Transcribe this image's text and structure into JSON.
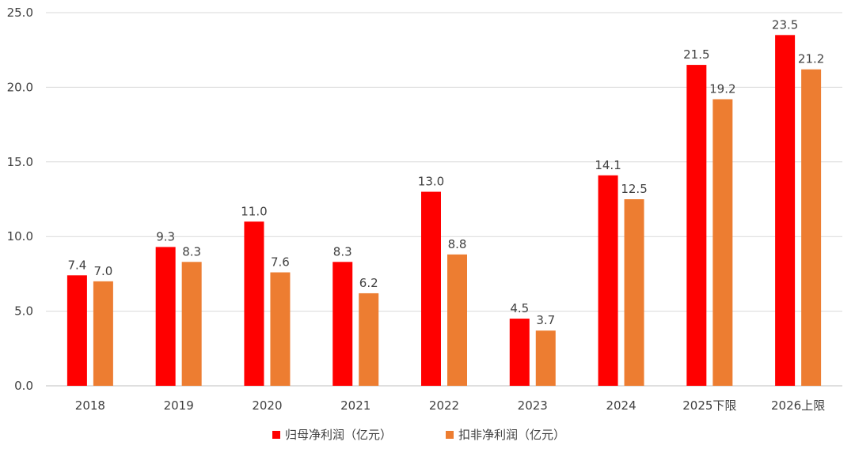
{
  "chart_data": {
    "type": "bar",
    "categories": [
      "2018",
      "2019",
      "2020",
      "2021",
      "2022",
      "2023",
      "2024",
      "2025下限",
      "2026上限"
    ],
    "series": [
      {
        "name": "归母净利润（亿元）",
        "color": "#ff0000",
        "values": [
          7.4,
          9.3,
          11.0,
          8.3,
          13.0,
          4.5,
          14.1,
          21.5,
          23.5
        ],
        "labels": [
          "7.4",
          "9.3",
          "11.0",
          "8.3",
          "13.0",
          "4.5",
          "14.1",
          "21.5",
          "23.5"
        ]
      },
      {
        "name": "扣非净利润（亿元）",
        "color": "#ed7d31",
        "values": [
          7.0,
          8.3,
          7.6,
          6.2,
          8.8,
          3.7,
          12.5,
          19.2,
          21.2
        ],
        "labels": [
          "7.0",
          "8.3",
          "7.6",
          "6.2",
          "8.8",
          "3.7",
          "12.5",
          "19.2",
          "21.2"
        ]
      }
    ],
    "y_ticks": [
      "0.0",
      "5.0",
      "10.0",
      "15.0",
      "20.0",
      "25.0"
    ],
    "ylim": [
      0,
      25
    ],
    "grid": true,
    "legend_position": "bottom"
  }
}
